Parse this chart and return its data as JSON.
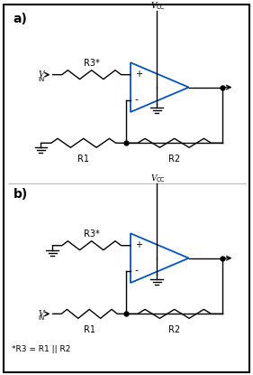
{
  "background_color": "#ffffff",
  "border_color": "#000000",
  "line_color": "#000000",
  "opamp_color": "#0055cc",
  "label_a": "a)",
  "label_b": "b)",
  "footnote": "*R3 = R1 || R2",
  "r1_label": "R1",
  "r2_label": "R2",
  "r3_label": "R3*",
  "plus_label": "+",
  "minus_label": "-",
  "vcc_label": "V",
  "vcc_sub": "CC",
  "vin_label": "V",
  "vin_sub": "IN"
}
